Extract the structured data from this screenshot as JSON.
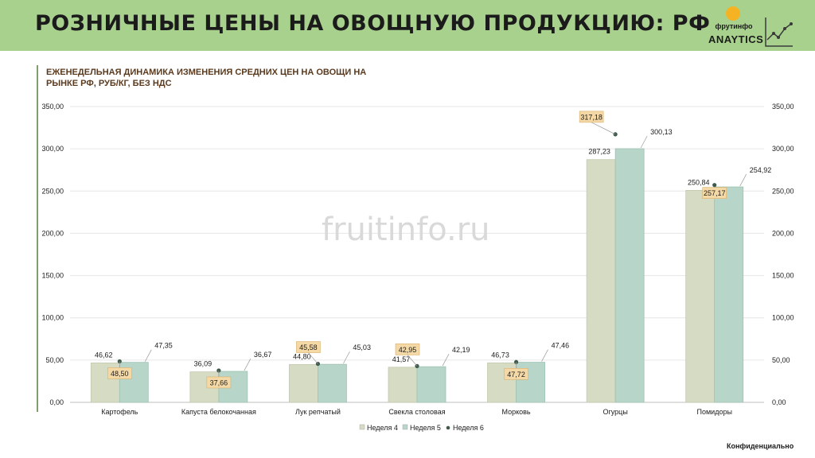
{
  "header": {
    "title": "РОЗНИЧНЫЕ ЦЕНЫ НА ОВОЩНУЮ ПРОДУКЦИЮ: РФ",
    "logo_brand": "фрутинфо",
    "logo_word": "ANAYTICS"
  },
  "subtitle": "ЕЖЕНЕДЕЛЬНАЯ ДИНАМИКА ИЗМЕНЕНИЯ СРЕДНИХ ЦЕН НА ОВОЩИ НА РЫНКЕ РФ, РУБ/КГ, БЕЗ НДС",
  "watermark": "fruitinfo.ru",
  "footer": "Конфиденциально",
  "colors": {
    "week4": "#d6dcc4",
    "week5": "#b7d5c8",
    "week6": "#3d5a4a",
    "label_box": "#f4d9a6"
  },
  "chart_data": {
    "type": "bar",
    "categories": [
      "Картофель",
      "Капуста белокочанная",
      "Лук репчатый",
      "Свекла столовая",
      "Морковь",
      "Огурцы",
      "Помидоры"
    ],
    "series": [
      {
        "name": "Неделя 4",
        "type": "bar",
        "values": [
          46.62,
          36.09,
          44.8,
          41.57,
          46.73,
          287.23,
          250.84
        ],
        "labels": [
          "46,62",
          "36,09",
          "44,80",
          "41,57",
          "46,73",
          "287,23",
          "250,84"
        ]
      },
      {
        "name": "Неделя 5",
        "type": "bar",
        "values": [
          47.35,
          36.67,
          45.03,
          42.19,
          47.46,
          300.13,
          254.92
        ],
        "labels": [
          "47,35",
          "36,67",
          "45,03",
          "42,19",
          "47,46",
          "300,13",
          "254,92"
        ]
      },
      {
        "name": "Неделя 6",
        "type": "point",
        "values": [
          48.5,
          37.66,
          45.58,
          42.95,
          47.72,
          317.18,
          257.17
        ],
        "labels": [
          "48,50",
          "37,66",
          "45,58",
          "42,95",
          "47,72",
          "317,18",
          "257,17"
        ]
      }
    ],
    "ylim": [
      0,
      350
    ],
    "yticks": [
      "0,00",
      "50,00",
      "100,00",
      "150,00",
      "200,00",
      "250,00",
      "300,00",
      "350,00"
    ],
    "grid": true,
    "legend_position": "bottom"
  }
}
